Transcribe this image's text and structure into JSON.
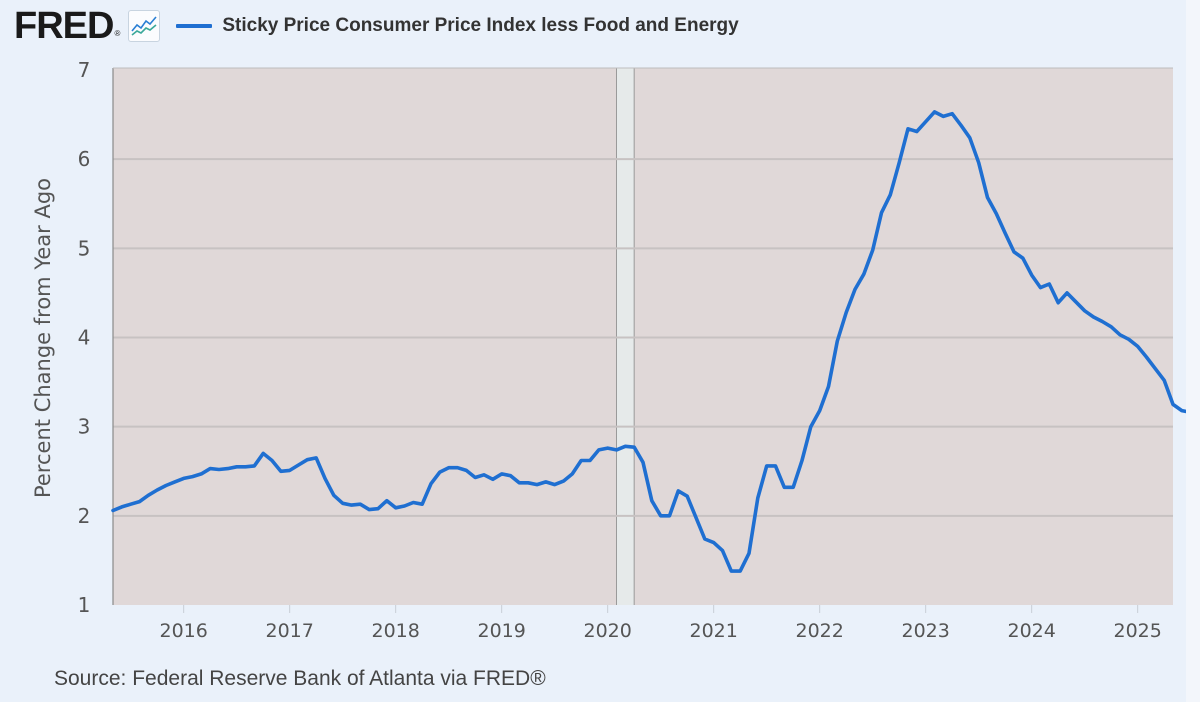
{
  "header": {
    "logo_text": "FRED",
    "logo_icon": "line-chart-icon"
  },
  "colors": {
    "series": "#1f6fd1",
    "plot_bg": "#e0d8d8",
    "recession": "#e6eaea",
    "grid": "#c7c2c2",
    "page_bg": "#eaf1fa"
  },
  "source": "Source: Federal Reserve Bank of Atlanta via FRED®",
  "chart_data": {
    "type": "line",
    "title": "",
    "xlabel": "",
    "ylabel": "Percent Change from Year Ago",
    "ylim": [
      1,
      7
    ],
    "xlim": [
      "2015-05",
      "2025-05"
    ],
    "yticks": [
      "1",
      "2",
      "3",
      "4",
      "5",
      "6",
      "7"
    ],
    "xticks": [
      "2016",
      "2017",
      "2018",
      "2019",
      "2020",
      "2021",
      "2022",
      "2023",
      "2024",
      "2025"
    ],
    "grid": true,
    "legend": "top-left",
    "recessions": [
      {
        "start": "2020-02",
        "end": "2020-04"
      }
    ],
    "series": [
      {
        "name": "Sticky Price Consumer Price Index less Food and Energy",
        "start": "2015-05",
        "frequency": "monthly",
        "values": [
          2.06,
          2.1,
          2.13,
          2.16,
          2.23,
          2.29,
          2.34,
          2.38,
          2.42,
          2.44,
          2.47,
          2.53,
          2.52,
          2.53,
          2.55,
          2.55,
          2.56,
          2.7,
          2.62,
          2.5,
          2.51,
          2.57,
          2.63,
          2.65,
          2.42,
          2.23,
          2.14,
          2.12,
          2.13,
          2.07,
          2.08,
          2.17,
          2.09,
          2.11,
          2.15,
          2.13,
          2.36,
          2.49,
          2.54,
          2.54,
          2.51,
          2.43,
          2.46,
          2.41,
          2.47,
          2.45,
          2.37,
          2.37,
          2.35,
          2.38,
          2.35,
          2.39,
          2.47,
          2.62,
          2.62,
          2.74,
          2.76,
          2.74,
          2.78,
          2.77,
          2.6,
          2.17,
          2.0,
          2.0,
          2.28,
          2.22,
          1.98,
          1.74,
          1.7,
          1.61,
          1.38,
          1.38,
          1.58,
          2.2,
          2.56,
          2.56,
          2.32,
          2.32,
          2.62,
          3.0,
          3.18,
          3.45,
          3.96,
          4.28,
          4.54,
          4.71,
          4.98,
          5.4,
          5.6,
          5.96,
          6.34,
          6.31,
          6.42,
          6.53,
          6.48,
          6.51,
          6.38,
          6.24,
          5.96,
          5.57,
          5.39,
          5.17,
          4.96,
          4.89,
          4.7,
          4.56,
          4.6,
          4.39,
          4.5,
          4.4,
          4.3,
          4.23,
          4.18,
          4.12,
          4.03,
          3.98,
          3.9,
          3.78,
          3.65,
          3.52,
          3.25,
          3.18,
          3.16
        ]
      }
    ]
  }
}
